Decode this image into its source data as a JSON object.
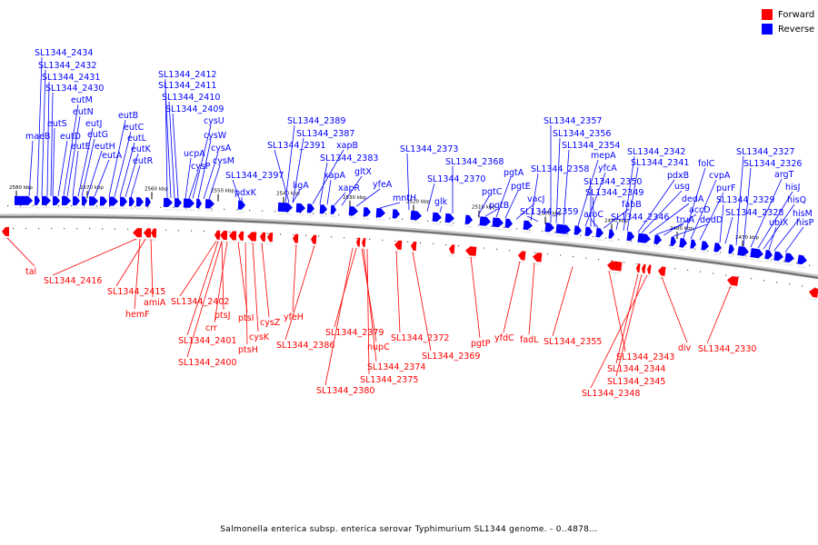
{
  "legend": {
    "forward_label": "Forward",
    "reverse_label": "Reverse",
    "forward_color": "#ff0000",
    "reverse_color": "#0000ff"
  },
  "caption": "Salmonella enterica subsp. enterica serovar Typhimurium SL1344 genome. - 0..4878...",
  "scale_ticks": [
    "2580 kbp",
    "2570 kbp",
    "2560 kbp",
    "2550 kbp",
    "2540 kbp",
    "2530 kbp",
    "2520 kbp",
    "2510 kbp",
    "2500 kbp",
    "2490 kbp",
    "2480 kbp",
    "2470 kbp"
  ],
  "reverse_genes": [
    "SL1344_2434",
    "SL1344_2432",
    "SL1344_2431",
    "SL1344_2430",
    "maeB",
    "eutS",
    "eutD",
    "eutM",
    "eutN",
    "eutJ",
    "eutE",
    "eutG",
    "eutH",
    "eutA",
    "eutB",
    "eutC",
    "eutL",
    "eutK",
    "eutR",
    "SL1344_2412",
    "SL1344_2411",
    "SL1344_2410",
    "SL1344_2409",
    "ucpA",
    "cysP",
    "cysU",
    "cysW",
    "cysA",
    "cysM",
    "SL1344_2397",
    "pdxK",
    "SL1344_2389",
    "SL1344_2387",
    "SL1344_2391",
    "ligA",
    "xapB",
    "SL1344_2383",
    "xapA",
    "xapR",
    "gltX",
    "yfeA",
    "mntH",
    "SL1344_2373",
    "glk",
    "SL1344_2370",
    "SL1344_2368",
    "pgtC",
    "pgtB",
    "pgtA",
    "pgtE",
    "vacJ",
    "SL1344_2358",
    "SL1344_2359",
    "SL1344_2357",
    "SL1344_2356",
    "SL1344_2354",
    "mepA",
    "yfcA",
    "SL1344_2350",
    "SL1344_2349",
    "aroC",
    "fabB",
    "SL1344_2346",
    "SL1344_2342",
    "SL1344_2341",
    "pdxB",
    "usg",
    "dedA",
    "truA",
    "accD",
    "dedD",
    "folC",
    "cvpA",
    "purF",
    "SL1344_2329",
    "SL1344_2328",
    "SL1344_2327",
    "SL1344_2326",
    "argT",
    "hisJ",
    "hisQ",
    "ubiX",
    "hisM",
    "hisP"
  ],
  "forward_genes": [
    "tal",
    "SL1344_2416",
    "SL1344_2415",
    "amiA",
    "hemF",
    "SL1344_2402",
    "ptsJ",
    "crr",
    "ptsI",
    "cysK",
    "ptsH",
    "cysZ",
    "SL1344_2401",
    "SL1344_2400",
    "yfeH",
    "SL1344_2386",
    "SL1344_2379",
    "nupC",
    "SL1344_2374",
    "SL1344_2375",
    "SL1344_2380",
    "SL1344_2372",
    "SL1344_2369",
    "pgtP",
    "yfdC",
    "fadL",
    "SL1344_2355",
    "SL1344_2343",
    "SL1344_2344",
    "SL1344_2345",
    "SL1344_2348",
    "div",
    "SL1344_2330"
  ]
}
